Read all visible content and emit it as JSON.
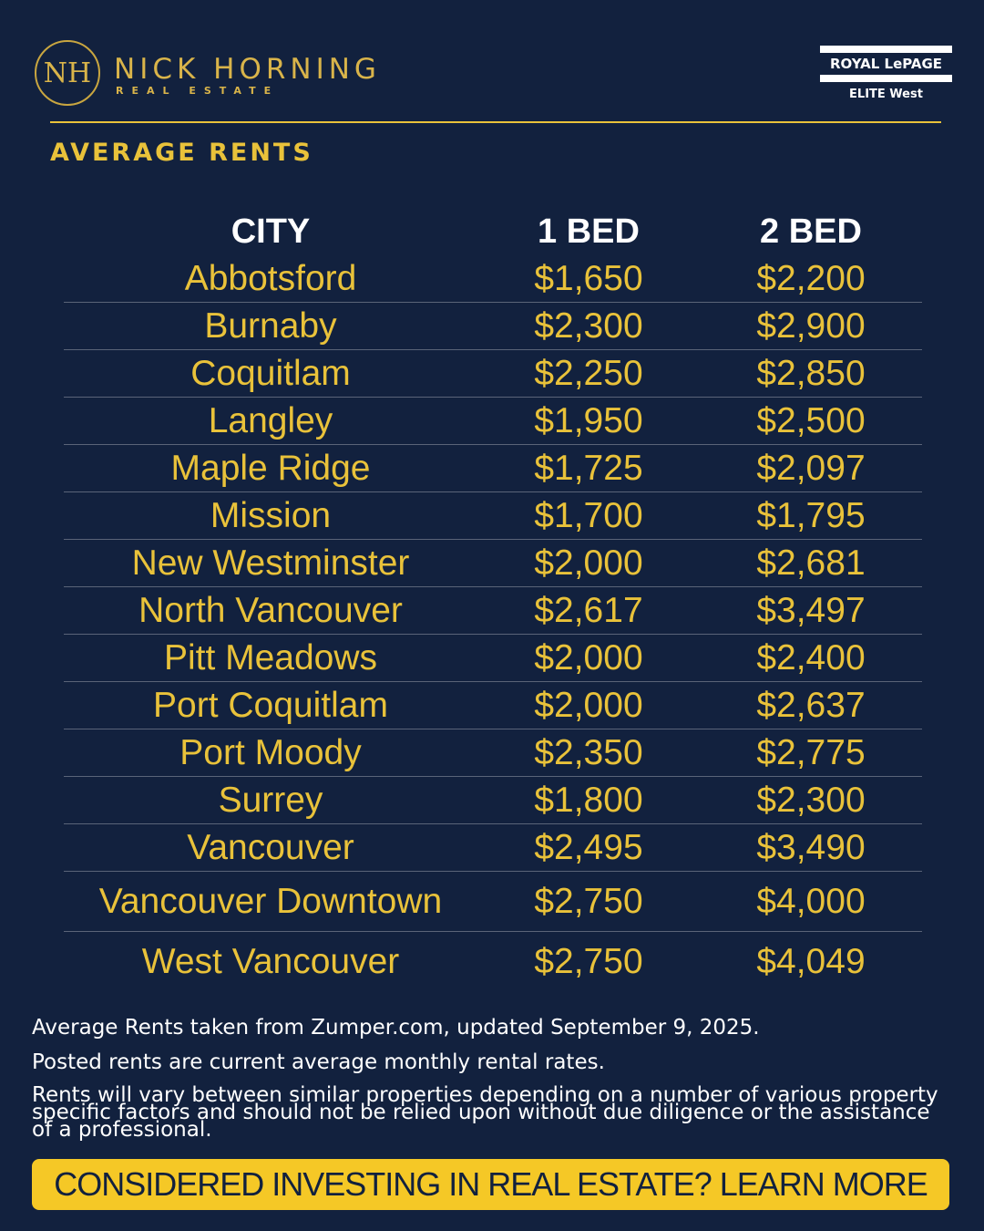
{
  "header": {
    "logo_monogram": "NH",
    "logo_name": "NICK HORNING",
    "logo_sub": "REAL ESTATE",
    "partner_name": "ROYAL LePAGE",
    "partner_sub": "ELITE West",
    "title": "AVERAGE RENTS"
  },
  "table": {
    "columns": [
      "CITY",
      "1 BED",
      "2 BED"
    ],
    "rows": [
      [
        "Abbotsford",
        "$1,650",
        "$2,200"
      ],
      [
        "Burnaby",
        "$2,300",
        "$2,900"
      ],
      [
        "Coquitlam",
        "$2,250",
        "$2,850"
      ],
      [
        "Langley",
        "$1,950",
        "$2,500"
      ],
      [
        "Maple Ridge",
        "$1,725",
        "$2,097"
      ],
      [
        "Mission",
        "$1,700",
        "$1,795"
      ],
      [
        "New Westminster",
        "$2,000",
        "$2,681"
      ],
      [
        "North Vancouver",
        "$2,617",
        "$3,497"
      ],
      [
        "Pitt Meadows",
        "$2,000",
        "$2,400"
      ],
      [
        "Port Coquitlam",
        "$2,000",
        "$2,637"
      ],
      [
        "Port Moody",
        "$2,350",
        "$2,775"
      ],
      [
        "Surrey",
        "$1,800",
        "$2,300"
      ],
      [
        "Vancouver",
        "$2,495",
        "$3,490"
      ],
      [
        "Vancouver Downtown",
        "$2,750",
        "$4,000"
      ],
      [
        "West Vancouver",
        "$2,750",
        "$4,049"
      ]
    ]
  },
  "notes": [
    "Average Rents taken from Zumper.com, updated September 9, 2025.",
    "Posted rents are current average monthly rental rates.",
    "Rents will vary between similar properties depending on a number of various property specific factors and should not be relied upon without due diligence or the assistance of a professional."
  ],
  "cta": "CONSIDERED INVESTING IN REAL ESTATE? LEARN MORE"
}
